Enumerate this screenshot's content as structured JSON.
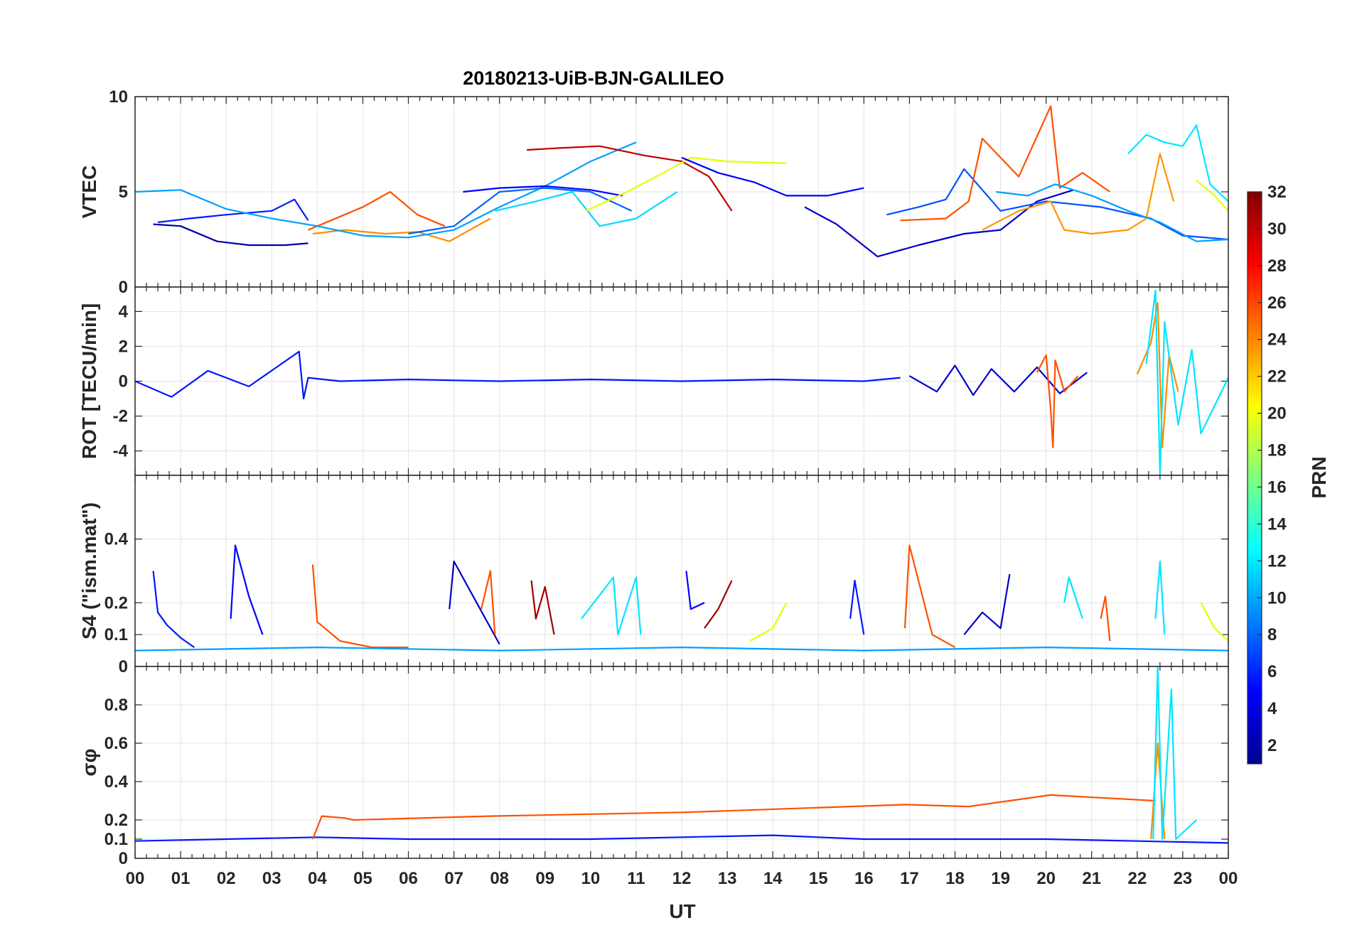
{
  "chart_data": {
    "type": "line",
    "title": "20180213-UiB-BJN-GALILEO",
    "xlabel": "UT",
    "x_ticks": [
      "00",
      "01",
      "02",
      "03",
      "04",
      "05",
      "06",
      "07",
      "08",
      "09",
      "10",
      "11",
      "12",
      "13",
      "14",
      "15",
      "16",
      "17",
      "18",
      "19",
      "20",
      "21",
      "22",
      "23",
      "00"
    ],
    "xlim": [
      0,
      24
    ],
    "grid": true,
    "colorbar": {
      "label": "PRN",
      "colormap": "jet",
      "range": [
        1,
        32
      ],
      "ticks": [
        "2",
        "4",
        "6",
        "8",
        "10",
        "12",
        "14",
        "16",
        "18",
        "20",
        "22",
        "24",
        "26",
        "28",
        "30",
        "32"
      ],
      "placement": "right"
    },
    "panels": [
      {
        "name": "vtec",
        "ylabel": "VTEC",
        "ylim": [
          0,
          10
        ],
        "y_ticks": [
          "0",
          "5",
          "10"
        ],
        "series": [
          {
            "prn": 1,
            "color": "#0000a0",
            "x": [
              0.4,
              1,
              1.8,
              2.5,
              3.3,
              3.8
            ],
            "y": [
              3.3,
              3.2,
              2.4,
              2.2,
              2.2,
              2.3
            ]
          },
          {
            "prn": 4,
            "color": "#0018ff",
            "x": [
              0.5,
              1.2,
              2.0,
              3.0,
              3.5,
              3.8
            ],
            "y": [
              3.4,
              3.6,
              3.8,
              4.0,
              4.6,
              3.5
            ]
          },
          {
            "prn": 26,
            "color": "#ff5000",
            "x": [
              3.8,
              4.3,
              5.0,
              5.6,
              6.2,
              6.8
            ],
            "y": [
              3.0,
              3.5,
              4.2,
              5.0,
              3.8,
              3.2
            ]
          },
          {
            "prn": 24,
            "color": "#ff8c00",
            "x": [
              3.9,
              4.6,
              5.5,
              6.2,
              6.9,
              7.8
            ],
            "y": [
              2.8,
              3.0,
              2.8,
              2.9,
              2.4,
              3.6
            ]
          },
          {
            "prn": 11,
            "color": "#00a0ff",
            "x": [
              0,
              1,
              2,
              3,
              4,
              5,
              6,
              7,
              8,
              9,
              10,
              11
            ],
            "y": [
              5.0,
              5.1,
              4.1,
              3.6,
              3.2,
              2.7,
              2.6,
              3.0,
              4.2,
              5.3,
              6.6,
              7.6
            ]
          },
          {
            "prn": 9,
            "color": "#0064ff",
            "x": [
              6,
              7,
              8,
              9,
              10,
              10.9
            ],
            "y": [
              2.8,
              3.2,
              5.0,
              5.2,
              5.0,
              4.0
            ]
          },
          {
            "prn": 5,
            "color": "#0000ff",
            "x": [
              7.2,
              8,
              9,
              10,
              10.7
            ],
            "y": [
              5.0,
              5.2,
              5.3,
              5.1,
              4.8
            ]
          },
          {
            "prn": 12,
            "color": "#00d8ff",
            "x": [
              7.9,
              8.8,
              9.6,
              10.2,
              11.0,
              11.9
            ],
            "y": [
              4.0,
              4.5,
              5.0,
              3.2,
              3.6,
              5.0
            ]
          },
          {
            "prn": 30,
            "color": "#c00000",
            "x": [
              8.6,
              9.3,
              10.2,
              11.2,
              12.0,
              12.6,
              13.1
            ],
            "y": [
              7.2,
              7.3,
              7.4,
              6.9,
              6.6,
              5.8,
              4.0
            ]
          },
          {
            "prn": 20,
            "color": "#e6ff00",
            "x": [
              9.9,
              10.8,
              11.6,
              12.2,
              13.0,
              14.3
            ],
            "y": [
              4.0,
              5.0,
              6.0,
              6.8,
              6.6,
              6.5
            ]
          },
          {
            "prn": 5,
            "color": "#0000ff",
            "x": [
              12.0,
              12.8,
              13.6,
              14.3,
              15.2,
              16.0
            ],
            "y": [
              6.8,
              6.0,
              5.5,
              4.8,
              4.8,
              5.2
            ]
          },
          {
            "prn": 3,
            "color": "#0000c8",
            "x": [
              14.7,
              15.4,
              16.3,
              17.2,
              18.2,
              19.0,
              19.8,
              20.6
            ],
            "y": [
              4.2,
              3.3,
              1.6,
              2.2,
              2.8,
              3.0,
              4.5,
              5.1
            ]
          },
          {
            "prn": 8,
            "color": "#0050ff",
            "x": [
              16.5,
              17.2,
              17.8,
              18.2,
              19.0,
              20.0,
              21.2,
              22.3,
              23.0,
              24.0
            ],
            "y": [
              3.8,
              4.2,
              4.6,
              6.2,
              4.0,
              4.5,
              4.2,
              3.6,
              2.7,
              2.5
            ]
          },
          {
            "prn": 26,
            "color": "#ff5000",
            "x": [
              16.8,
              17.8,
              18.3,
              18.6,
              19.4,
              20.1,
              20.3,
              20.8,
              21.4
            ],
            "y": [
              3.5,
              3.6,
              4.5,
              7.8,
              5.8,
              9.5,
              5.2,
              6.0,
              5.0
            ]
          },
          {
            "prn": 23,
            "color": "#ff9600",
            "x": [
              18.6,
              19.4,
              20.1,
              20.4,
              21.0,
              21.8,
              22.2,
              22.5,
              22.8
            ],
            "y": [
              3.0,
              4.0,
              4.5,
              3.0,
              2.8,
              3.0,
              3.6,
              7.0,
              4.5
            ]
          },
          {
            "prn": 11,
            "color": "#00a0ff",
            "x": [
              18.9,
              19.6,
              20.2,
              21.0,
              21.8,
              22.5,
              23.3,
              24.0
            ],
            "y": [
              5.0,
              4.8,
              5.4,
              4.8,
              4.0,
              3.4,
              2.4,
              2.5
            ]
          },
          {
            "prn": 13,
            "color": "#00e6ff",
            "x": [
              21.8,
              22.2,
              22.6,
              23.0,
              23.3,
              23.6,
              24.0
            ],
            "y": [
              7.0,
              8.0,
              7.6,
              7.4,
              8.5,
              5.4,
              4.5
            ]
          },
          {
            "prn": 20,
            "color": "#e6ff00",
            "x": [
              23.3,
              23.7,
              24.0
            ],
            "y": [
              5.6,
              4.8,
              4.0
            ]
          }
        ]
      },
      {
        "name": "rot",
        "ylabel": "ROT [TECU/min]",
        "ylim": [
          -5.4,
          5.4
        ],
        "y_ticks": [
          "-4",
          "-2",
          "0",
          "2",
          "4"
        ],
        "series": [
          {
            "prn": 4,
            "color": "#0018ff",
            "x": [
              0,
              0.8,
              1.6,
              2.5,
              3.6,
              3.7,
              3.8,
              4.5,
              6,
              8,
              10,
              12,
              14,
              16,
              16.8
            ],
            "y": [
              0,
              -0.9,
              0.6,
              -0.3,
              1.7,
              -1.0,
              0.2,
              0.0,
              0.1,
              0.0,
              0.1,
              0.0,
              0.1,
              0.0,
              0.2
            ]
          },
          {
            "prn": 3,
            "color": "#0000c8",
            "x": [
              17.0,
              17.6,
              18.0,
              18.4,
              18.8,
              19.3,
              19.8,
              20.3,
              20.9
            ],
            "y": [
              0.3,
              -0.6,
              0.9,
              -0.8,
              0.7,
              -0.6,
              0.8,
              -0.7,
              0.5
            ]
          },
          {
            "prn": 26,
            "color": "#ff5000",
            "x": [
              19.8,
              20.0,
              20.1,
              20.15,
              20.2,
              20.4,
              20.7
            ],
            "y": [
              0.5,
              1.5,
              -1.6,
              -3.8,
              1.2,
              -0.6,
              0.3
            ]
          },
          {
            "prn": 24,
            "color": "#ff8c00",
            "x": [
              22.0,
              22.3,
              22.45,
              22.55,
              22.7,
              22.9
            ],
            "y": [
              0.4,
              2.2,
              4.5,
              -3.8,
              1.5,
              -0.6
            ]
          },
          {
            "prn": 13,
            "color": "#00e6ff",
            "x": [
              22.2,
              22.4,
              22.5,
              22.6,
              22.9,
              23.2,
              23.4,
              24.0
            ],
            "y": [
              1.0,
              5.2,
              -5.3,
              3.4,
              -2.5,
              1.8,
              -3.0,
              0.2
            ]
          }
        ]
      },
      {
        "name": "s4",
        "ylabel": "S4 (\"ism.mat\")",
        "ylim": [
          0,
          0.6
        ],
        "y_ticks": [
          "0",
          "0.1",
          "0.2",
          "0.4"
        ],
        "series": [
          {
            "prn": 4,
            "color": "#0018ff",
            "x": [
              0.4,
              0.5,
              0.7,
              1.0,
              1.3
            ],
            "y": [
              0.3,
              0.17,
              0.13,
              0.09,
              0.06
            ]
          },
          {
            "prn": 5,
            "color": "#0000ff",
            "x": [
              2.1,
              2.2,
              2.5,
              2.8
            ],
            "y": [
              0.15,
              0.38,
              0.22,
              0.1
            ]
          },
          {
            "prn": 26,
            "color": "#ff5000",
            "x": [
              3.9,
              4.0,
              4.5,
              5.2,
              6.0
            ],
            "y": [
              0.32,
              0.14,
              0.08,
              0.06,
              0.06
            ]
          },
          {
            "prn": 3,
            "color": "#0000c8",
            "x": [
              6.9,
              7.0,
              7.5,
              8.0
            ],
            "y": [
              0.18,
              0.33,
              0.2,
              0.07
            ]
          },
          {
            "prn": 26,
            "color": "#ff5000",
            "x": [
              7.6,
              7.8,
              7.9
            ],
            "y": [
              0.18,
              0.3,
              0.1
            ]
          },
          {
            "prn": 31,
            "color": "#a00000",
            "x": [
              8.7,
              8.8,
              9.0,
              9.2
            ],
            "y": [
              0.27,
              0.15,
              0.25,
              0.1
            ]
          },
          {
            "prn": 13,
            "color": "#00e6ff",
            "x": [
              9.8,
              10.5,
              10.6,
              11.0,
              11.1
            ],
            "y": [
              0.15,
              0.28,
              0.1,
              0.28,
              0.1
            ]
          },
          {
            "prn": 5,
            "color": "#0000ff",
            "x": [
              12.1,
              12.2,
              12.5
            ],
            "y": [
              0.3,
              0.18,
              0.2
            ]
          },
          {
            "prn": 31,
            "color": "#a00000",
            "x": [
              12.5,
              12.8,
              13.0,
              13.1
            ],
            "y": [
              0.12,
              0.18,
              0.24,
              0.27
            ]
          },
          {
            "prn": 20,
            "color": "#e6ff00",
            "x": [
              13.5,
              14.0,
              14.3
            ],
            "y": [
              0.08,
              0.12,
              0.2
            ]
          },
          {
            "prn": 4,
            "color": "#0018ff",
            "x": [
              15.7,
              15.8,
              16.0
            ],
            "y": [
              0.15,
              0.27,
              0.1
            ]
          },
          {
            "prn": 26,
            "color": "#ff5000",
            "x": [
              16.9,
              17.0,
              17.5,
              18.0
            ],
            "y": [
              0.12,
              0.38,
              0.1,
              0.06
            ]
          },
          {
            "prn": 3,
            "color": "#0000c8",
            "x": [
              18.2,
              18.6,
              19.0,
              19.2
            ],
            "y": [
              0.1,
              0.17,
              0.12,
              0.29
            ]
          },
          {
            "prn": 13,
            "color": "#00e6ff",
            "x": [
              20.4,
              20.5,
              20.8
            ],
            "y": [
              0.2,
              0.28,
              0.15
            ]
          },
          {
            "prn": 26,
            "color": "#ff5000",
            "x": [
              21.2,
              21.3,
              21.4
            ],
            "y": [
              0.15,
              0.22,
              0.08
            ]
          },
          {
            "prn": 13,
            "color": "#00e6ff",
            "x": [
              22.4,
              22.5,
              22.6
            ],
            "y": [
              0.15,
              0.33,
              0.1
            ]
          },
          {
            "prn": 20,
            "color": "#e6ff00",
            "x": [
              23.4,
              23.7,
              24.0
            ],
            "y": [
              0.2,
              0.12,
              0.08
            ]
          },
          {
            "prn": 11,
            "color": "#00a0ff",
            "x": [
              0,
              4,
              8,
              12,
              16,
              20,
              24
            ],
            "y": [
              0.05,
              0.06,
              0.05,
              0.06,
              0.05,
              0.06,
              0.05
            ]
          }
        ]
      },
      {
        "name": "sigma-phi",
        "ylabel": "σφ",
        "ylim": [
          0,
          1.0
        ],
        "y_ticks": [
          "0",
          "0.1",
          "0.2",
          "0.4",
          "0.6",
          "0.8"
        ],
        "series": [
          {
            "prn": 4,
            "color": "#0018ff",
            "x": [
              0,
              2,
              4,
              6,
              8,
              10,
              12,
              14,
              16,
              18,
              20,
              22,
              24
            ],
            "y": [
              0.09,
              0.1,
              0.11,
              0.1,
              0.1,
              0.1,
              0.11,
              0.12,
              0.1,
              0.1,
              0.1,
              0.09,
              0.08
            ]
          },
          {
            "prn": 26,
            "color": "#ff5000",
            "x": [
              3.9,
              4.1,
              4.6,
              4.8,
              7.8,
              12.1,
              16.9,
              18.3,
              20.1,
              22.4
            ],
            "y": [
              0.1,
              0.22,
              0.21,
              0.2,
              0.22,
              0.24,
              0.28,
              0.27,
              0.33,
              0.3
            ]
          },
          {
            "prn": 24,
            "color": "#ff8c00",
            "x": [
              22.3,
              22.45,
              22.6
            ],
            "y": [
              0.1,
              0.6,
              0.1
            ]
          },
          {
            "prn": 13,
            "color": "#00e6ff",
            "x": [
              22.35,
              22.45,
              22.55,
              22.75,
              22.85,
              23.3
            ],
            "y": [
              0.1,
              1.0,
              0.1,
              0.88,
              0.1,
              0.2
            ]
          }
        ]
      }
    ]
  }
}
